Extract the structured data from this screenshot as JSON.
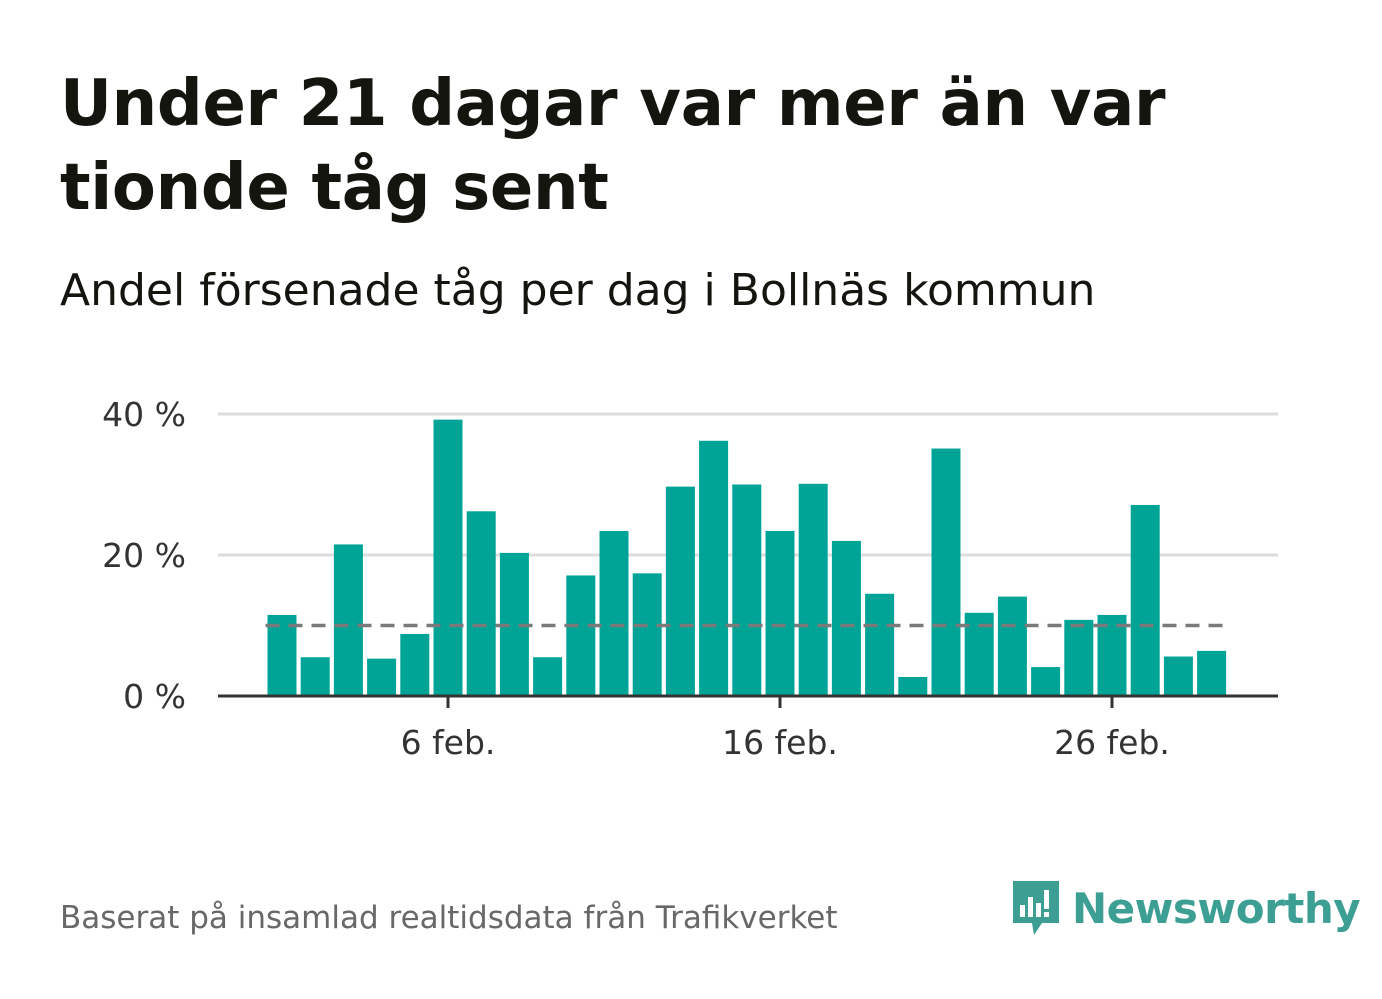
{
  "header": {
    "title": "Under 21 dagar var mer än var tionde tåg sent",
    "subtitle": "Andel försenade tåg per dag i Bollnäs kommun"
  },
  "footer": {
    "source": "Baserat på insamlad realtidsdata från Trafikverket",
    "brand": "Newsworthy",
    "brand_icon": "newsworthy-logo-icon"
  },
  "colors": {
    "bar": "#00a497",
    "reference_line": "#7a7a7a",
    "grid": "#dddddd",
    "axis": "#333333",
    "brand": "#3d9e93"
  },
  "chart_data": {
    "type": "bar",
    "x": [
      "2024-02-01",
      "2024-02-02",
      "2024-02-03",
      "2024-02-04",
      "2024-02-05",
      "2024-02-06",
      "2024-02-07",
      "2024-02-08",
      "2024-02-09",
      "2024-02-10",
      "2024-02-11",
      "2024-02-12",
      "2024-02-13",
      "2024-02-14",
      "2024-02-15",
      "2024-02-16",
      "2024-02-17",
      "2024-02-18",
      "2024-02-19",
      "2024-02-20",
      "2024-02-21",
      "2024-02-22",
      "2024-02-23",
      "2024-02-24",
      "2024-02-25",
      "2024-02-26",
      "2024-02-27",
      "2024-02-28",
      "2024-02-29"
    ],
    "values": [
      11.5,
      5.5,
      21.5,
      5.3,
      8.8,
      39.2,
      26.2,
      20.3,
      5.5,
      17.1,
      23.4,
      17.4,
      29.7,
      36.2,
      30.0,
      23.4,
      30.1,
      22.0,
      14.5,
      2.7,
      35.1,
      11.8,
      14.1,
      4.1,
      10.8,
      11.5,
      27.1,
      5.6,
      6.4
    ],
    "reference_line": 10,
    "ylim": [
      0,
      40
    ],
    "yticks": [
      0,
      20,
      40
    ],
    "ytick_labels": [
      "0 %",
      "20 %",
      "40 %"
    ],
    "xticks": [
      "2024-02-06",
      "2024-02-16",
      "2024-02-26"
    ],
    "xtick_labels": [
      "6 feb.",
      "16 feb.",
      "26 feb."
    ],
    "xlabel": "",
    "ylabel": "",
    "grid": true,
    "legend": "none"
  }
}
